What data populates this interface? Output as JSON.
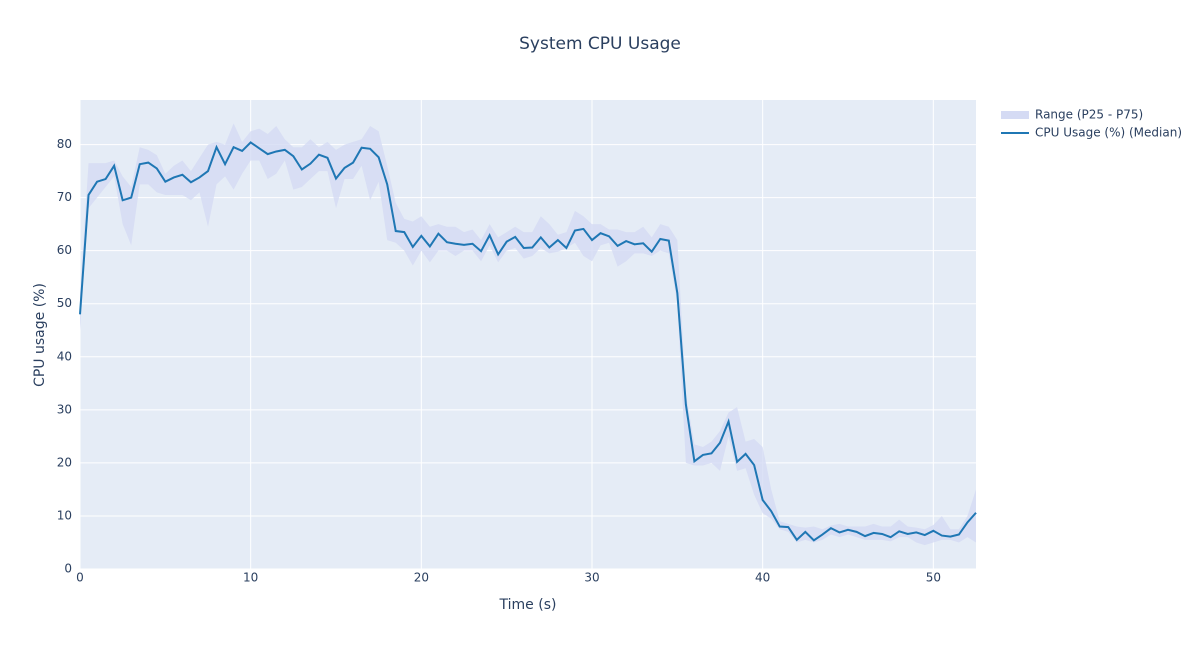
{
  "chart_data": {
    "type": "line",
    "title": "System CPU Usage",
    "x_label": "Time (s)",
    "y_label": "CPU usage (%)",
    "x": [
      0,
      0.5,
      1,
      1.5,
      2,
      2.5,
      3,
      3.5,
      4,
      4.5,
      5,
      5.5,
      6,
      6.5,
      7,
      7.5,
      8,
      8.5,
      9,
      9.5,
      10,
      10.5,
      11,
      11.5,
      12,
      12.5,
      13,
      13.5,
      14,
      14.5,
      15,
      15.5,
      16,
      16.5,
      17,
      17.5,
      18,
      18.5,
      19,
      19.5,
      20,
      20.5,
      21,
      21.5,
      22,
      22.5,
      23,
      23.5,
      24,
      24.5,
      25,
      25.5,
      26,
      26.5,
      27,
      27.5,
      28,
      28.5,
      29,
      29.5,
      30,
      30.5,
      31,
      31.5,
      32,
      32.5,
      33,
      33.5,
      34,
      34.5,
      35,
      35.5,
      36,
      36.5,
      37,
      37.5,
      38,
      38.5,
      39,
      39.5,
      40,
      40.5,
      41,
      41.5,
      42,
      42.5,
      43,
      43.5,
      44,
      44.5,
      45,
      45.5,
      46,
      46.5,
      47,
      47.5,
      48,
      48.5,
      49,
      49.5,
      50,
      50.5,
      51,
      51.5,
      52,
      52.5
    ],
    "series": [
      {
        "name": "Range (P25 - P75)",
        "color": "#d5dbf4",
        "upper": [
          52,
          76.5,
          76.5,
          76.5,
          77,
          74,
          72,
          79.5,
          79,
          78,
          74.5,
          76,
          77,
          75,
          77.5,
          80,
          80.5,
          80,
          84,
          80.5,
          82.5,
          83,
          82,
          83.5,
          81,
          79.5,
          79.5,
          81,
          79.5,
          80.5,
          79,
          80,
          80.5,
          81,
          83.5,
          82.5,
          76,
          69,
          66,
          65.5,
          66.5,
          64.5,
          65,
          64.5,
          64.5,
          63.5,
          64,
          62,
          65,
          62.5,
          63.5,
          64.5,
          63.5,
          63.5,
          66.5,
          65,
          63,
          63.5,
          67.5,
          66.5,
          65,
          65,
          64,
          64,
          63.5,
          63.5,
          64.5,
          62.5,
          65,
          64.5,
          62,
          33,
          23.5,
          23,
          24,
          26,
          29.5,
          30.5,
          24,
          24.5,
          23,
          15,
          9,
          8.5,
          8,
          7.8,
          8,
          7.5,
          8.2,
          8.5,
          8,
          8,
          8,
          8.5,
          8,
          8,
          9.3,
          8,
          7.8,
          7.5,
          8.3,
          10,
          7.5,
          7.5,
          10,
          15
        ],
        "lower": [
          45,
          68,
          70,
          72,
          74,
          65,
          61,
          72.5,
          72.5,
          71,
          70.5,
          70.5,
          70.5,
          69.5,
          71,
          64.5,
          72.5,
          74,
          71.5,
          74.5,
          77,
          77,
          73.5,
          74.5,
          77,
          71.5,
          72,
          73.5,
          75,
          75,
          68,
          73.5,
          73.5,
          76,
          69.5,
          73,
          62,
          61.5,
          60,
          57.2,
          60,
          57.8,
          60,
          60,
          59,
          60,
          60,
          58,
          61,
          57.8,
          60,
          60.5,
          58.5,
          59,
          60.5,
          59.5,
          59.8,
          60.5,
          61.5,
          59,
          58,
          61,
          61.5,
          57,
          58,
          59.5,
          59.5,
          59,
          60,
          59.5,
          50,
          20,
          19.5,
          19.5,
          20,
          18.5,
          25,
          18.5,
          19,
          14,
          10.5,
          9.5,
          7.5,
          7,
          5,
          5.5,
          5,
          5.5,
          6.5,
          6,
          6.5,
          6,
          5.5,
          5.5,
          5.5,
          5.2,
          6,
          6,
          5,
          4.5,
          5,
          5.5,
          5.5,
          5,
          6,
          5
        ]
      },
      {
        "name": "CPU Usage (%) (Median)",
        "color": "#1f77b4",
        "values": [
          48,
          70.5,
          73,
          73.5,
          76,
          69.5,
          70,
          76.3,
          76.6,
          75.5,
          73,
          73.8,
          74.3,
          72.9,
          73.8,
          75,
          79.5,
          76.3,
          79.5,
          78.8,
          80.4,
          79.3,
          78.2,
          78.7,
          79,
          77.8,
          75.3,
          76.4,
          78.1,
          77.5,
          73.6,
          75.6,
          76.6,
          79.4,
          79.2,
          77.6,
          72.5,
          63.7,
          63.5,
          60.7,
          62.8,
          60.8,
          63.2,
          61.6,
          61.3,
          61.1,
          61.3,
          59.9,
          62.9,
          59.3,
          61.7,
          62.6,
          60.5,
          60.6,
          62.5,
          60.6,
          62,
          60.5,
          63.8,
          64.1,
          62,
          63.3,
          62.7,
          60.9,
          61.8,
          61.2,
          61.4,
          59.8,
          62.2,
          61.9,
          52,
          31,
          20.3,
          21.5,
          21.8,
          23.8,
          27.8,
          20.2,
          21.7,
          19.6,
          13,
          10.9,
          8,
          7.9,
          5.5,
          7,
          5.4,
          6.5,
          7.7,
          6.9,
          7.4,
          7,
          6.2,
          6.8,
          6.6,
          6,
          7.1,
          6.6,
          6.9,
          6.4,
          7.2,
          6.3,
          6.1,
          6.5,
          8.8,
          10.6
        ]
      }
    ],
    "xlim": [
      0,
      52.5
    ],
    "ylim": [
      0,
      88.4
    ],
    "xticks": [
      0,
      10,
      20,
      30,
      40,
      50
    ],
    "yticks": [
      0,
      10,
      20,
      30,
      40,
      50,
      60,
      70,
      80
    ],
    "grid": true
  }
}
